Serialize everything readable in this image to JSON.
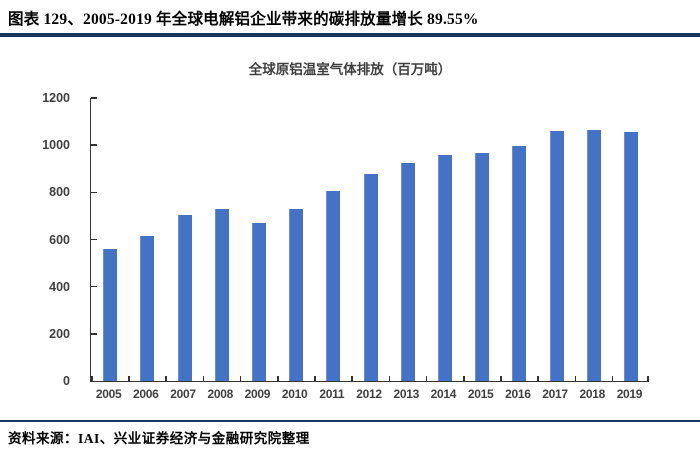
{
  "header": {
    "caption": "图表  129、2005-2019 年全球电解铝企业带来的碳排放量增长 89.55%"
  },
  "chart_data": {
    "type": "bar",
    "title": "全球原铝温室气体排放（百万吨）",
    "categories": [
      "2005",
      "2006",
      "2007",
      "2008",
      "2009",
      "2010",
      "2011",
      "2012",
      "2013",
      "2014",
      "2015",
      "2016",
      "2017",
      "2018",
      "2019"
    ],
    "values": [
      558,
      614,
      706,
      729,
      671,
      729,
      806,
      877,
      925,
      960,
      965,
      995,
      1059,
      1066,
      1058
    ],
    "xlabel": "",
    "ylabel": "",
    "ylim": [
      0,
      1200
    ],
    "ytick_step": 200,
    "grid": false,
    "legend_position": "none"
  },
  "footer": {
    "source": "资料来源：IAI、兴业证券经济与金融研究院整理"
  },
  "colors": {
    "bar": "#4472C4",
    "accent_rule": "#17375E",
    "axis": "#333333",
    "label_text": "#3f3f3f"
  }
}
